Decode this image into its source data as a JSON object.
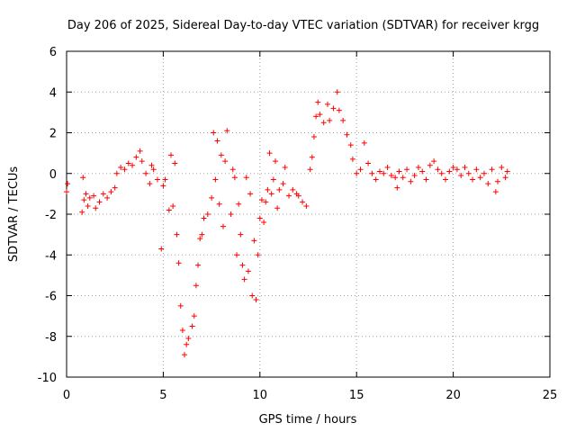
{
  "chart_data": {
    "type": "scatter",
    "title": "Day 206 of 2025, Sidereal Day-to-day VTEC variation (SDTVAR) for receiver krgg",
    "xlabel": "GPS time / hours",
    "ylabel": "SDTVAR / TECUs",
    "xlim": [
      0,
      25
    ],
    "ylim": [
      -10,
      6
    ],
    "xticks": [
      0,
      5,
      10,
      15,
      20,
      25
    ],
    "yticks": [
      -10,
      -8,
      -6,
      -4,
      -2,
      0,
      2,
      4,
      6
    ],
    "grid": true,
    "marker": "+",
    "color": "#ff0000",
    "series": [
      {
        "name": "SDTVAR",
        "points": [
          [
            0.0,
            -0.9
          ],
          [
            0.05,
            -0.5
          ],
          [
            0.8,
            -1.9
          ],
          [
            0.85,
            -0.2
          ],
          [
            0.9,
            -1.3
          ],
          [
            1.0,
            -1.0
          ],
          [
            1.1,
            -1.6
          ],
          [
            1.2,
            -1.2
          ],
          [
            1.4,
            -1.1
          ],
          [
            1.5,
            -1.7
          ],
          [
            1.7,
            -1.4
          ],
          [
            1.9,
            -1.0
          ],
          [
            2.1,
            -1.2
          ],
          [
            2.3,
            -0.9
          ],
          [
            2.5,
            -0.7
          ],
          [
            2.6,
            0.0
          ],
          [
            2.8,
            0.3
          ],
          [
            3.0,
            0.2
          ],
          [
            3.2,
            0.5
          ],
          [
            3.4,
            0.4
          ],
          [
            3.6,
            0.8
          ],
          [
            3.8,
            1.1
          ],
          [
            3.9,
            0.6
          ],
          [
            4.1,
            0.0
          ],
          [
            4.3,
            -0.5
          ],
          [
            4.4,
            0.4
          ],
          [
            4.5,
            0.2
          ],
          [
            4.7,
            -0.3
          ],
          [
            4.9,
            -3.7
          ],
          [
            5.0,
            -0.6
          ],
          [
            5.1,
            -0.3
          ],
          [
            5.3,
            -1.8
          ],
          [
            5.4,
            0.9
          ],
          [
            5.5,
            -1.6
          ],
          [
            5.6,
            0.5
          ],
          [
            5.7,
            -3.0
          ],
          [
            5.8,
            -4.4
          ],
          [
            5.9,
            -6.5
          ],
          [
            6.0,
            -7.7
          ],
          [
            6.1,
            -8.9
          ],
          [
            6.2,
            -8.4
          ],
          [
            6.3,
            -8.1
          ],
          [
            6.5,
            -7.5
          ],
          [
            6.6,
            -7.0
          ],
          [
            6.7,
            -5.5
          ],
          [
            6.8,
            -4.5
          ],
          [
            6.9,
            -3.2
          ],
          [
            7.0,
            -3.0
          ],
          [
            7.1,
            -2.2
          ],
          [
            7.3,
            -2.0
          ],
          [
            7.5,
            -1.2
          ],
          [
            7.6,
            2.0
          ],
          [
            7.7,
            -0.3
          ],
          [
            7.8,
            1.6
          ],
          [
            7.9,
            -1.5
          ],
          [
            8.0,
            0.9
          ],
          [
            8.1,
            -2.6
          ],
          [
            8.2,
            0.6
          ],
          [
            8.3,
            2.1
          ],
          [
            8.5,
            -2.0
          ],
          [
            8.6,
            0.2
          ],
          [
            8.7,
            -0.2
          ],
          [
            8.8,
            -4.0
          ],
          [
            8.9,
            -1.5
          ],
          [
            9.0,
            -3.0
          ],
          [
            9.1,
            -4.5
          ],
          [
            9.2,
            -5.2
          ],
          [
            9.3,
            -0.2
          ],
          [
            9.4,
            -4.8
          ],
          [
            9.5,
            -1.0
          ],
          [
            9.6,
            -6.0
          ],
          [
            9.7,
            -3.3
          ],
          [
            9.8,
            -6.2
          ],
          [
            9.9,
            -4.0
          ],
          [
            10.0,
            -2.2
          ],
          [
            10.1,
            -1.3
          ],
          [
            10.2,
            -2.4
          ],
          [
            10.3,
            -1.4
          ],
          [
            10.4,
            -0.8
          ],
          [
            10.5,
            1.0
          ],
          [
            10.6,
            -1.0
          ],
          [
            10.7,
            -0.3
          ],
          [
            10.8,
            0.6
          ],
          [
            10.9,
            -1.7
          ],
          [
            11.0,
            -0.8
          ],
          [
            11.2,
            -0.5
          ],
          [
            11.3,
            0.3
          ],
          [
            11.5,
            -1.1
          ],
          [
            11.7,
            -0.8
          ],
          [
            11.9,
            -1.0
          ],
          [
            12.0,
            -1.1
          ],
          [
            12.2,
            -1.4
          ],
          [
            12.4,
            -1.6
          ],
          [
            12.6,
            0.2
          ],
          [
            12.7,
            0.8
          ],
          [
            12.8,
            1.8
          ],
          [
            12.9,
            2.8
          ],
          [
            13.0,
            3.5
          ],
          [
            13.1,
            2.9
          ],
          [
            13.3,
            2.5
          ],
          [
            13.5,
            3.4
          ],
          [
            13.6,
            2.6
          ],
          [
            13.8,
            3.2
          ],
          [
            14.0,
            4.0
          ],
          [
            14.1,
            3.1
          ],
          [
            14.3,
            2.6
          ],
          [
            14.5,
            1.9
          ],
          [
            14.7,
            1.4
          ],
          [
            14.8,
            0.7
          ],
          [
            15.0,
            0.0
          ],
          [
            15.2,
            0.2
          ],
          [
            15.4,
            1.5
          ],
          [
            15.6,
            0.5
          ],
          [
            15.8,
            0.0
          ],
          [
            16.0,
            -0.3
          ],
          [
            16.2,
            0.1
          ],
          [
            16.4,
            0.0
          ],
          [
            16.6,
            0.3
          ],
          [
            16.8,
            -0.1
          ],
          [
            17.0,
            -0.2
          ],
          [
            17.1,
            -0.7
          ],
          [
            17.2,
            0.1
          ],
          [
            17.4,
            -0.2
          ],
          [
            17.6,
            0.2
          ],
          [
            17.8,
            -0.4
          ],
          [
            18.0,
            -0.1
          ],
          [
            18.2,
            0.3
          ],
          [
            18.4,
            0.1
          ],
          [
            18.6,
            -0.3
          ],
          [
            18.8,
            0.4
          ],
          [
            19.0,
            0.6
          ],
          [
            19.2,
            0.2
          ],
          [
            19.4,
            0.0
          ],
          [
            19.6,
            -0.3
          ],
          [
            19.8,
            0.1
          ],
          [
            20.0,
            0.3
          ],
          [
            20.2,
            0.2
          ],
          [
            20.4,
            -0.1
          ],
          [
            20.6,
            0.3
          ],
          [
            20.8,
            0.0
          ],
          [
            21.0,
            -0.3
          ],
          [
            21.2,
            0.2
          ],
          [
            21.4,
            -0.2
          ],
          [
            21.6,
            0.0
          ],
          [
            21.8,
            -0.5
          ],
          [
            22.0,
            0.2
          ],
          [
            22.2,
            -0.9
          ],
          [
            22.3,
            -0.4
          ],
          [
            22.5,
            0.3
          ],
          [
            22.7,
            -0.2
          ],
          [
            22.8,
            0.1
          ]
        ]
      }
    ]
  }
}
